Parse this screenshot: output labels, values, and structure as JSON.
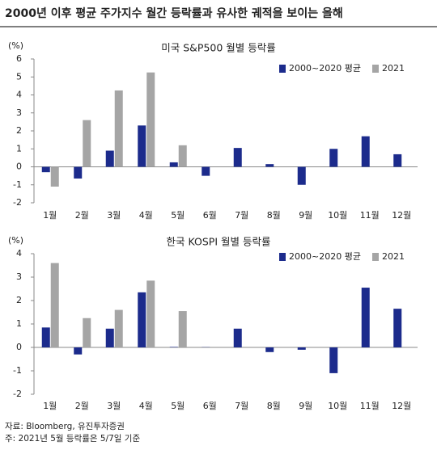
{
  "title": "2000년 이후 평균 주가지수 월간 등락률과 유사한 궤적을 보이는 올해",
  "notes": [
    "자료: Bloomberg, 유진투자증권",
    "주: 2021년 5월 등락률은 5/7일 기준"
  ],
  "chart_data": [
    {
      "type": "bar",
      "title": "미국 S&P500 월별 등락률",
      "y_unit": "(%)",
      "categories": [
        "1월",
        "2월",
        "3월",
        "4월",
        "5월",
        "6월",
        "7월",
        "8월",
        "9월",
        "10월",
        "11월",
        "12월"
      ],
      "series": [
        {
          "name": "2000~2020 평균",
          "color": "#1c2b8c",
          "values": [
            -0.3,
            -0.65,
            0.9,
            2.3,
            0.25,
            -0.5,
            1.05,
            0.15,
            -1.0,
            1.0,
            1.7,
            0.7
          ]
        },
        {
          "name": "2021",
          "color": "#a5a5a5",
          "values": [
            -1.1,
            2.6,
            4.25,
            5.25,
            1.2,
            null,
            null,
            null,
            null,
            null,
            null,
            null
          ]
        }
      ],
      "ylim": [
        -2,
        6
      ],
      "yticks": [
        -2,
        -1,
        0,
        1,
        2,
        3,
        4,
        5,
        6
      ]
    },
    {
      "type": "bar",
      "title": "한국 KOSPI 월별 등락률",
      "y_unit": "(%)",
      "categories": [
        "1월",
        "2월",
        "3월",
        "4월",
        "5월",
        "6월",
        "7월",
        "8월",
        "9월",
        "10월",
        "11월",
        "12월"
      ],
      "series": [
        {
          "name": "2000~2020 평균",
          "color": "#1c2b8c",
          "values": [
            0.85,
            -0.3,
            0.8,
            2.35,
            0.02,
            0.01,
            0.8,
            -0.2,
            -0.1,
            -1.1,
            2.55,
            1.65
          ]
        },
        {
          "name": "2021",
          "color": "#a5a5a5",
          "values": [
            3.6,
            1.25,
            1.6,
            2.85,
            1.55,
            null,
            null,
            null,
            null,
            null,
            null,
            null
          ]
        }
      ],
      "ylim": [
        -2,
        4
      ],
      "yticks": [
        -2,
        -1,
        0,
        1,
        2,
        3,
        4
      ]
    }
  ]
}
